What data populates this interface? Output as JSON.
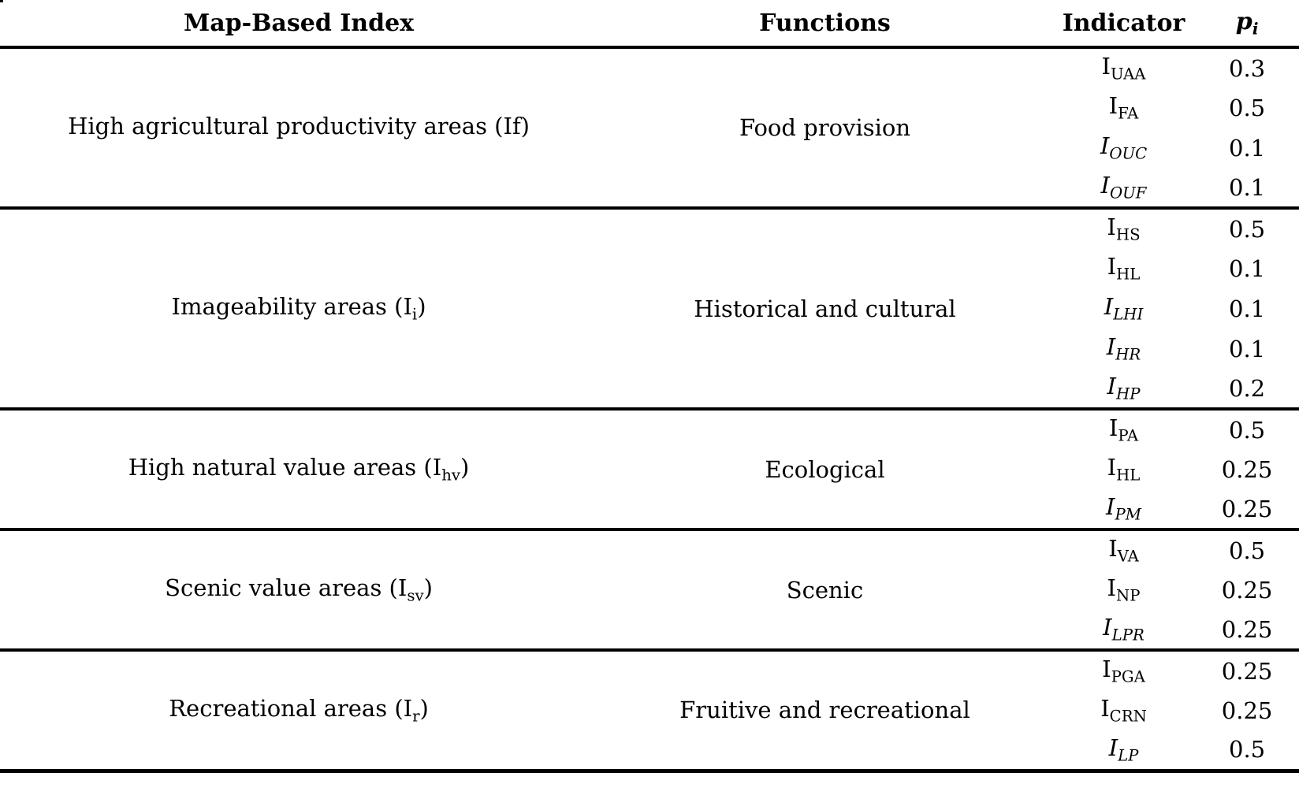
{
  "table": {
    "header": {
      "index_label": "Map-Based Index",
      "functions_label": "Functions",
      "indicator_label": "Indicator",
      "p_base": "p",
      "p_sub": "i"
    },
    "groups": [
      {
        "index": {
          "pre": "High agricultural productivity areas (If)",
          "sub": "",
          "post": ""
        },
        "function": "Food provision",
        "indicators": [
          {
            "base": "I",
            "sub": "UAA",
            "variant": "upright",
            "p": "0.3"
          },
          {
            "base": "I",
            "sub": "FA",
            "variant": "upright",
            "p": "0.5"
          },
          {
            "base": "I",
            "sub": "OUC",
            "variant": "italic",
            "p": "0.1"
          },
          {
            "base": "I",
            "sub": "OUF",
            "variant": "italic",
            "p": "0.1"
          }
        ]
      },
      {
        "index": {
          "pre": "Imageability areas (I",
          "sub": "i",
          "post": ")"
        },
        "function": "Historical and cultural",
        "indicators": [
          {
            "base": "I",
            "sub": "HS",
            "variant": "upright",
            "p": "0.5"
          },
          {
            "base": "I",
            "sub": "HL",
            "variant": "upright",
            "p": "0.1"
          },
          {
            "base": "I",
            "sub": "LHI",
            "variant": "italic",
            "p": "0.1"
          },
          {
            "base": "I",
            "sub": "HR",
            "variant": "italic",
            "p": "0.1"
          },
          {
            "base": "I",
            "sub": "HP",
            "variant": "italic",
            "p": "0.2"
          }
        ]
      },
      {
        "index": {
          "pre": "High natural value areas (I",
          "sub": "hv",
          "post": ")"
        },
        "function": "Ecological",
        "indicators": [
          {
            "base": "I",
            "sub": "PA",
            "variant": "upright",
            "p": "0.5"
          },
          {
            "base": "I",
            "sub": "HL",
            "variant": "upright",
            "p": "0.25"
          },
          {
            "base": "I",
            "sub": "PM",
            "variant": "italic",
            "p": "0.25"
          }
        ]
      },
      {
        "index": {
          "pre": "Scenic value areas (I",
          "sub": "sv",
          "post": ")"
        },
        "function": "Scenic",
        "indicators": [
          {
            "base": "I",
            "sub": "VA",
            "variant": "upright",
            "p": "0.5"
          },
          {
            "base": "I",
            "sub": "NP",
            "variant": "upright",
            "p": "0.25"
          },
          {
            "base": "I",
            "sub": "LPR",
            "variant": "italic",
            "p": "0.25"
          }
        ]
      },
      {
        "index": {
          "pre": "Recreational areas (I",
          "sub": "r",
          "post": ")"
        },
        "function": "Fruitive and recreational",
        "indicators": [
          {
            "base": "I",
            "sub": "PGA",
            "variant": "upright",
            "p": "0.25"
          },
          {
            "base": "I",
            "sub": "CRN",
            "variant": "upright",
            "p": "0.25"
          },
          {
            "base": "I",
            "sub": "LP",
            "variant": "italic",
            "p": "0.5"
          }
        ]
      }
    ]
  }
}
